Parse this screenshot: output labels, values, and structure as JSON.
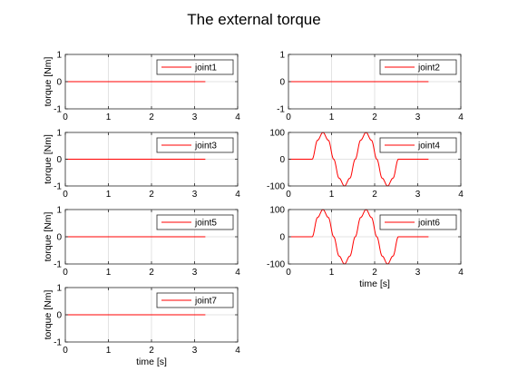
{
  "figure": {
    "title": "The external torque"
  },
  "chart_data": [
    {
      "type": "line",
      "panel": "joint1",
      "legend": "joint1",
      "legend_loc": "top-right",
      "ylabel": "torque [Nm]",
      "xlabel": "",
      "xlim": [
        0,
        4
      ],
      "ylim": [
        -1,
        1
      ],
      "xticks": [
        0,
        1,
        2,
        3,
        4
      ],
      "yticks": [
        -1,
        0,
        1
      ],
      "grid": true,
      "color": "#ff0000",
      "x": [
        0,
        3.25
      ],
      "y": [
        0,
        0
      ]
    },
    {
      "type": "line",
      "panel": "joint2",
      "legend": "joint2",
      "legend_loc": "top-right",
      "ylabel": "",
      "xlabel": "",
      "xlim": [
        0,
        4
      ],
      "ylim": [
        -1,
        1
      ],
      "xticks": [
        0,
        1,
        2,
        3,
        4
      ],
      "yticks": [
        -1,
        0,
        1
      ],
      "grid": true,
      "color": "#ff0000",
      "x": [
        0,
        3.25
      ],
      "y": [
        0,
        0
      ]
    },
    {
      "type": "line",
      "panel": "joint3",
      "legend": "joint3",
      "legend_loc": "top-right",
      "ylabel": "torque [Nm]",
      "xlabel": "",
      "xlim": [
        0,
        4
      ],
      "ylim": [
        -1,
        1
      ],
      "xticks": [
        0,
        1,
        2,
        3,
        4
      ],
      "yticks": [
        -1,
        0,
        1
      ],
      "grid": true,
      "color": "#ff0000",
      "x": [
        0,
        3.25
      ],
      "y": [
        0,
        0
      ]
    },
    {
      "type": "line",
      "panel": "joint4",
      "legend": "joint4",
      "legend_loc": "top-right",
      "ylabel": "",
      "xlabel": "",
      "xlim": [
        0,
        4
      ],
      "ylim": [
        -100,
        100
      ],
      "xticks": [
        0,
        1,
        2,
        3,
        4
      ],
      "yticks": [
        -100,
        0,
        100
      ],
      "grid": true,
      "color": "#ff0000",
      "x": [
        0,
        0.55,
        0.675,
        0.8,
        0.925,
        1.05,
        1.175,
        1.3,
        1.425,
        1.55,
        1.675,
        1.8,
        1.925,
        2.05,
        2.175,
        2.3,
        2.425,
        2.55,
        3.25
      ],
      "y": [
        0,
        0,
        71,
        100,
        71,
        0,
        -71,
        -100,
        -71,
        0,
        71,
        100,
        71,
        0,
        -71,
        -100,
        -71,
        0,
        0
      ]
    },
    {
      "type": "line",
      "panel": "joint5",
      "legend": "joint5",
      "legend_loc": "top-right",
      "ylabel": "torque [Nm]",
      "xlabel": "",
      "xlim": [
        0,
        4
      ],
      "ylim": [
        -1,
        1
      ],
      "xticks": [
        0,
        1,
        2,
        3,
        4
      ],
      "yticks": [
        -1,
        0,
        1
      ],
      "grid": true,
      "color": "#ff0000",
      "x": [
        0,
        3.25
      ],
      "y": [
        0,
        0
      ]
    },
    {
      "type": "line",
      "panel": "joint6",
      "legend": "joint6",
      "legend_loc": "top-right",
      "ylabel": "",
      "xlabel": "time [s]",
      "xlim": [
        0,
        4
      ],
      "ylim": [
        -100,
        100
      ],
      "xticks": [
        0,
        1,
        2,
        3,
        4
      ],
      "yticks": [
        -100,
        0,
        100
      ],
      "grid": true,
      "color": "#ff0000",
      "x": [
        0,
        0.55,
        0.675,
        0.8,
        0.925,
        1.05,
        1.175,
        1.3,
        1.425,
        1.55,
        1.675,
        1.8,
        1.925,
        2.05,
        2.175,
        2.3,
        2.425,
        2.55,
        3.25
      ],
      "y": [
        0,
        0,
        71,
        100,
        71,
        0,
        -71,
        -100,
        -71,
        0,
        71,
        100,
        71,
        0,
        -71,
        -100,
        -71,
        0,
        0
      ]
    },
    {
      "type": "line",
      "panel": "joint7",
      "legend": "joint7",
      "legend_loc": "top-right",
      "ylabel": "torque [Nm]",
      "xlabel": "time [s]",
      "xlim": [
        0,
        4
      ],
      "ylim": [
        -1,
        1
      ],
      "xticks": [
        0,
        1,
        2,
        3,
        4
      ],
      "yticks": [
        -1,
        0,
        1
      ],
      "grid": true,
      "color": "#ff0000",
      "x": [
        0,
        3.25
      ],
      "y": [
        0,
        0
      ]
    }
  ]
}
